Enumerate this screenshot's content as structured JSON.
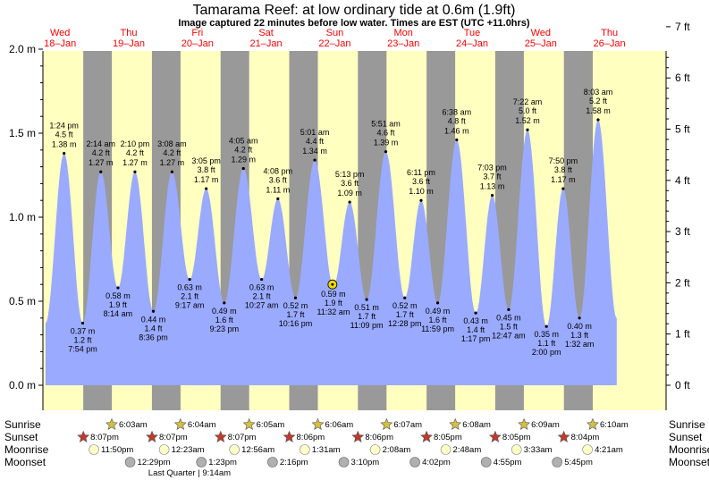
{
  "title": "Tamarama Reef: at low  ordinary tide at 0.6m (1.9ft)",
  "subtitle": "Image captured 22 minutes before low water. Times are EST (UTC +11.0hrs)",
  "colors": {
    "day_bg": "#ffffc0",
    "night_bg": "#999999",
    "tide_fill": "#9aaaff",
    "day_label": "#ff0000",
    "sun_icon": "#d4c040",
    "sunset_icon": "#c0392b",
    "moonrise_icon": "#ffffc8",
    "moonset_icon": "#b0b0b0",
    "current_marker": "#f0d800"
  },
  "days": [
    {
      "dow": "Wed",
      "date": "18–Jan"
    },
    {
      "dow": "Thu",
      "date": "19–Jan"
    },
    {
      "dow": "Fri",
      "date": "20–Jan"
    },
    {
      "dow": "Sat",
      "date": "21–Jan"
    },
    {
      "dow": "Sun",
      "date": "22–Jan"
    },
    {
      "dow": "Mon",
      "date": "23–Jan"
    },
    {
      "dow": "Tue",
      "date": "24–Jan"
    },
    {
      "dow": "Wed",
      "date": "25–Jan"
    },
    {
      "dow": "Thu",
      "date": "26–Jan"
    }
  ],
  "chart_data": {
    "type": "area",
    "x_unit": "hours since 00:00 18-Jan (EST)",
    "left_axis": {
      "ticks": [
        "0.0 m",
        "0.5 m",
        "1.0 m",
        "1.5 m",
        "2.0 m"
      ],
      "values": [
        0,
        0.5,
        1.0,
        1.5,
        2.0
      ],
      "range": [
        -0.15,
        2.1
      ]
    },
    "right_axis": {
      "ticks": [
        "0 ft",
        "1 ft",
        "2 ft",
        "3 ft",
        "4 ft",
        "5 ft",
        "6 ft",
        "7 ft"
      ],
      "values": [
        0,
        1,
        2,
        3,
        4,
        5,
        6,
        7
      ]
    },
    "x_range": [
      6,
      214
    ],
    "night_periods": [
      [
        20.1,
        30.1
      ],
      [
        44.1,
        54.1
      ],
      [
        68.1,
        78.1
      ],
      [
        92.1,
        102.1
      ],
      [
        116.1,
        126.1
      ],
      [
        140.1,
        150.1
      ],
      [
        164.1,
        174.1
      ],
      [
        188.1,
        198.2
      ]
    ],
    "tides": [
      {
        "x": 13.4,
        "m": 1.38,
        "time": "1:24 pm",
        "ft": "4.5 ft",
        "m_label": "1.38 m",
        "type": "high"
      },
      {
        "x": 19.9,
        "m": 0.37,
        "time": "7:54 pm",
        "ft": "1.2 ft",
        "m_label": "0.37 m",
        "type": "low"
      },
      {
        "x": 26.23,
        "m": 1.27,
        "time": "2:14 am",
        "ft": "4.2 ft",
        "m_label": "1.27 m",
        "type": "high"
      },
      {
        "x": 32.23,
        "m": 0.58,
        "time": "8:14 am",
        "ft": "1.9 ft",
        "m_label": "0.58 m",
        "type": "low"
      },
      {
        "x": 38.17,
        "m": 1.27,
        "time": "2:10 pm",
        "ft": "4.2 ft",
        "m_label": "1.27 m",
        "type": "high"
      },
      {
        "x": 44.6,
        "m": 0.44,
        "time": "8:36 pm",
        "ft": "1.4 ft",
        "m_label": "0.44 m",
        "type": "low"
      },
      {
        "x": 51.13,
        "m": 1.27,
        "time": "3:08 am",
        "ft": "4.2 ft",
        "m_label": "1.27 m",
        "type": "high"
      },
      {
        "x": 57.28,
        "m": 0.63,
        "time": "9:17 am",
        "ft": "2.1 ft",
        "m_label": "0.63 m",
        "type": "low"
      },
      {
        "x": 63.08,
        "m": 1.17,
        "time": "3:05 pm",
        "ft": "3.8 ft",
        "m_label": "1.17 m",
        "type": "high"
      },
      {
        "x": 69.38,
        "m": 0.49,
        "time": "9:23 pm",
        "ft": "1.6 ft",
        "m_label": "0.49 m",
        "type": "low"
      },
      {
        "x": 76.08,
        "m": 1.29,
        "time": "4:05 am",
        "ft": "4.2 ft",
        "m_label": "1.29 m",
        "type": "high"
      },
      {
        "x": 82.45,
        "m": 0.63,
        "time": "10:27 am",
        "ft": "2.1 ft",
        "m_label": "0.63 m",
        "type": "low"
      },
      {
        "x": 88.13,
        "m": 1.11,
        "time": "4:08 pm",
        "ft": "3.6 ft",
        "m_label": "1.11 m",
        "type": "high"
      },
      {
        "x": 94.27,
        "m": 0.52,
        "time": "10:16 pm",
        "ft": "1.7 ft",
        "m_label": "0.52 m",
        "type": "low"
      },
      {
        "x": 101.02,
        "m": 1.34,
        "time": "5:01 am",
        "ft": "4.4 ft",
        "m_label": "1.34 m",
        "type": "high"
      },
      {
        "x": 107.53,
        "m": 0.59,
        "time": "11:32 am",
        "ft": "1.9 ft",
        "m_label": "0.59 m",
        "type": "low"
      },
      {
        "x": 113.22,
        "m": 1.09,
        "time": "5:13 pm",
        "ft": "3.6 ft",
        "m_label": "1.09 m",
        "type": "high"
      },
      {
        "x": 119.15,
        "m": 0.51,
        "time": "11:09 pm",
        "ft": "1.7 ft",
        "m_label": "0.51 m",
        "type": "low"
      },
      {
        "x": 125.85,
        "m": 1.39,
        "time": "5:51 am",
        "ft": "4.6 ft",
        "m_label": "1.39 m",
        "type": "high"
      },
      {
        "x": 132.47,
        "m": 0.52,
        "time": "12:28 pm",
        "ft": "1.7 ft",
        "m_label": "0.52 m",
        "type": "low"
      },
      {
        "x": 138.18,
        "m": 1.1,
        "time": "6:11 pm",
        "ft": "3.6 ft",
        "m_label": "1.10 m",
        "type": "high"
      },
      {
        "x": 143.98,
        "m": 0.49,
        "time": "11:59 pm",
        "ft": "1.6 ft",
        "m_label": "0.49 m",
        "type": "low"
      },
      {
        "x": 150.63,
        "m": 1.46,
        "time": "6:38 am",
        "ft": "4.8 ft",
        "m_label": "1.46 m",
        "type": "high"
      },
      {
        "x": 157.28,
        "m": 0.43,
        "time": "1:17 pm",
        "ft": "1.4 ft",
        "m_label": "0.43 m",
        "type": "low"
      },
      {
        "x": 163.05,
        "m": 1.13,
        "time": "7:03 pm",
        "ft": "3.7 ft",
        "m_label": "1.13 m",
        "type": "high"
      },
      {
        "x": 168.78,
        "m": 0.45,
        "time": "12:47 am",
        "ft": "1.5 ft",
        "m_label": "0.45 m",
        "type": "low"
      },
      {
        "x": 175.37,
        "m": 1.52,
        "time": "7:22 am",
        "ft": "5.0 ft",
        "m_label": "1.52 m",
        "type": "high"
      },
      {
        "x": 182.0,
        "m": 0.35,
        "time": "2:00 pm",
        "ft": "1.1 ft",
        "m_label": "0.35 m",
        "type": "low"
      },
      {
        "x": 187.83,
        "m": 1.17,
        "time": "7:50 pm",
        "ft": "3.8 ft",
        "m_label": "1.17 m",
        "type": "high"
      },
      {
        "x": 193.53,
        "m": 0.4,
        "time": "1:32 am",
        "ft": "1.3 ft",
        "m_label": "0.40 m",
        "type": "low"
      },
      {
        "x": 200.05,
        "m": 1.58,
        "time": "8:03 am",
        "ft": "5.2 ft",
        "m_label": "1.58 m",
        "type": "high"
      }
    ],
    "current": {
      "x": 107.2,
      "m": 0.6
    }
  },
  "rows": {
    "sunrise": {
      "label": "Sunrise",
      "events": [
        {
          "x": 30.05,
          "time": "6:03am"
        },
        {
          "x": 54.07,
          "time": "6:04am"
        },
        {
          "x": 78.08,
          "time": "6:05am"
        },
        {
          "x": 102.1,
          "time": "6:06am"
        },
        {
          "x": 126.12,
          "time": "6:07am"
        },
        {
          "x": 150.13,
          "time": "6:08am"
        },
        {
          "x": 174.15,
          "time": "6:09am"
        },
        {
          "x": 198.17,
          "time": "6:10am"
        }
      ]
    },
    "sunset": {
      "label": "Sunset",
      "events": [
        {
          "x": 20.12,
          "time": "8:07pm"
        },
        {
          "x": 44.12,
          "time": "8:07pm"
        },
        {
          "x": 68.12,
          "time": "8:07pm"
        },
        {
          "x": 92.1,
          "time": "8:06pm"
        },
        {
          "x": 116.1,
          "time": "8:06pm"
        },
        {
          "x": 140.08,
          "time": "8:05pm"
        },
        {
          "x": 164.08,
          "time": "8:05pm"
        },
        {
          "x": 188.07,
          "time": "8:04pm"
        }
      ]
    },
    "moonrise": {
      "label": "Moonrise",
      "events": [
        {
          "x": 23.83,
          "time": "11:50pm"
        },
        {
          "x": 48.38,
          "time": "12:23am"
        },
        {
          "x": 72.93,
          "time": "12:56am"
        },
        {
          "x": 97.52,
          "time": "1:31am"
        },
        {
          "x": 122.13,
          "time": "2:08am"
        },
        {
          "x": 146.8,
          "time": "2:48am"
        },
        {
          "x": 171.55,
          "time": "3:33am"
        },
        {
          "x": 196.35,
          "time": "4:21am"
        }
      ]
    },
    "moonset": {
      "label": "Moonset",
      "events": [
        {
          "x": 36.48,
          "time": "12:29pm"
        },
        {
          "x": 61.38,
          "time": "1:23pm"
        },
        {
          "x": 86.27,
          "time": "2:16pm"
        },
        {
          "x": 111.17,
          "time": "3:10pm"
        },
        {
          "x": 136.03,
          "time": "4:02pm"
        },
        {
          "x": 160.92,
          "time": "4:55pm"
        },
        {
          "x": 185.75,
          "time": "5:45pm"
        }
      ]
    },
    "moon_phase": {
      "x": 57.23,
      "text": "Last Quarter | 9:14am"
    }
  }
}
